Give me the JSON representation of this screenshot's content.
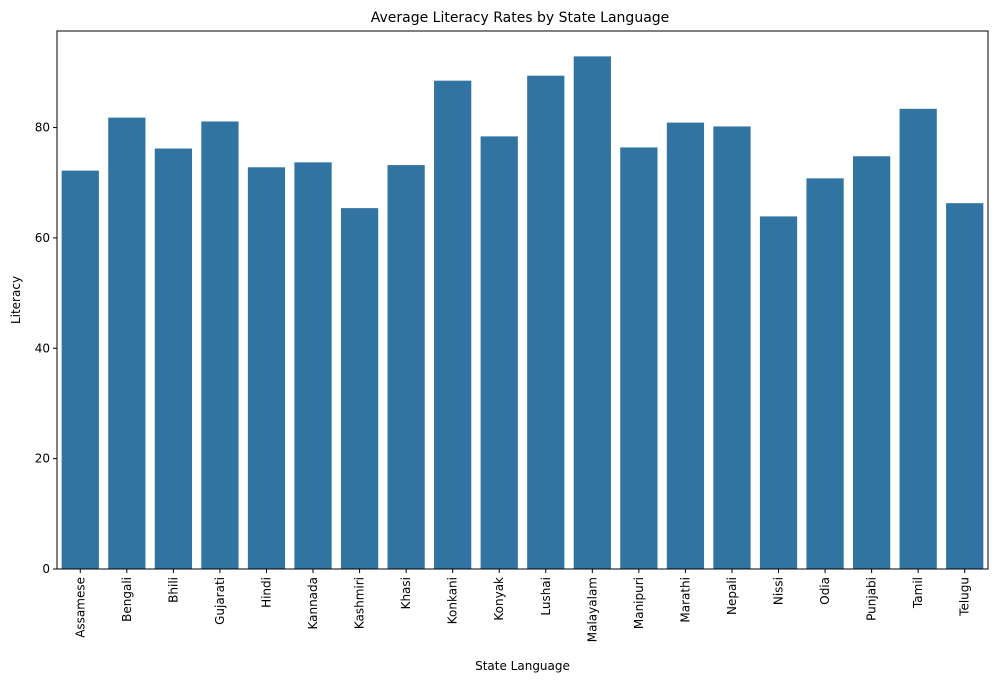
{
  "chart_data": {
    "type": "bar",
    "title": "Average Literacy Rates by State Language",
    "xlabel": "State Language",
    "ylabel": "Literacy",
    "categories": [
      "Assamese",
      "Bengali",
      "Bhili",
      "Gujarati",
      "Hindi",
      "Kannada",
      "Kashmiri",
      "Khasi",
      "Konkani",
      "Konyak",
      "Lushai",
      "Malayalam",
      "Manipuri",
      "Marathi",
      "Nepali",
      "Nissi",
      "Odia",
      "Punjabi",
      "Tamil",
      "Telugu"
    ],
    "values": [
      72.2,
      81.8,
      76.2,
      81.1,
      72.8,
      73.7,
      65.4,
      73.2,
      88.5,
      78.4,
      89.4,
      92.9,
      76.4,
      80.9,
      80.2,
      63.9,
      70.8,
      74.8,
      83.4,
      66.3
    ],
    "ylim": [
      0,
      97.5
    ],
    "yticks": [
      0,
      20,
      40,
      60,
      80
    ],
    "bar_color": "#3274a1",
    "grid": false,
    "legend": false
  }
}
